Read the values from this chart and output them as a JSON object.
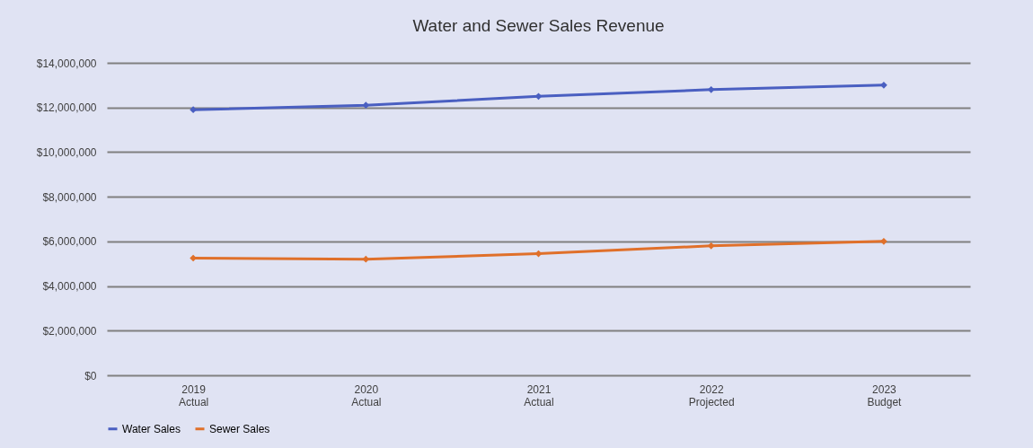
{
  "chart_data": {
    "type": "line",
    "title": "Water and Sewer Sales Revenue",
    "categories": [
      "2019 Actual",
      "2020 Actual",
      "2021 Actual",
      "2022 Projected",
      "2023 Budget"
    ],
    "series": [
      {
        "name": "Water Sales",
        "color": "#4a5fc1",
        "values": [
          11900000,
          12100000,
          12500000,
          12800000,
          13000000
        ]
      },
      {
        "name": "Sewer Sales",
        "color": "#e0702a",
        "values": [
          5250000,
          5200000,
          5450000,
          5800000,
          6000000
        ]
      }
    ],
    "ylim": [
      0,
      14000000
    ],
    "yticks": [
      {
        "value": 0,
        "label": "$0"
      },
      {
        "value": 2000000,
        "label": "$2,000,000"
      },
      {
        "value": 4000000,
        "label": "$4,000,000"
      },
      {
        "value": 6000000,
        "label": "$6,000,000"
      },
      {
        "value": 8000000,
        "label": "$8,000,000"
      },
      {
        "value": 10000000,
        "label": "$10,000,000"
      },
      {
        "value": 12000000,
        "label": "$12,000,000"
      },
      {
        "value": 14000000,
        "label": "$14,000,000"
      }
    ],
    "grid": "y",
    "legend": "bottom",
    "marker": "diamond",
    "line_style": "solid"
  }
}
